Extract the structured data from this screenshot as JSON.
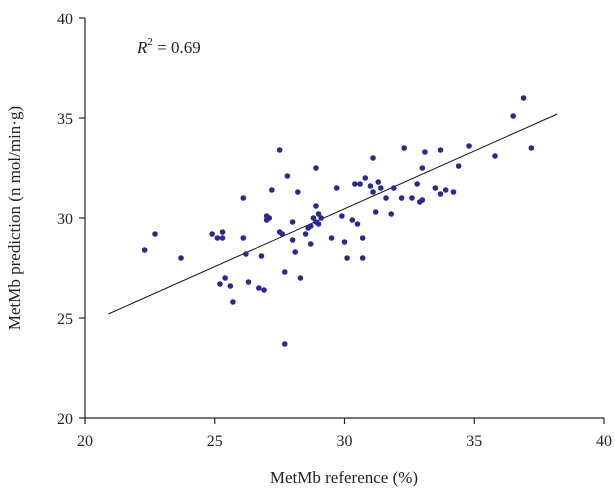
{
  "chart_data": {
    "type": "scatter",
    "xlabel": "MetMb reference (%)",
    "ylabel": "MetMb prediction (n mol/min·g)",
    "xlim": [
      20,
      40
    ],
    "ylim": [
      20,
      40
    ],
    "xticks": [
      20,
      25,
      30,
      35,
      40
    ],
    "yticks": [
      20,
      25,
      30,
      35,
      40
    ],
    "annotation": {
      "base": "R",
      "sup": "2",
      "rest": " = 0.69"
    },
    "colors": {
      "points": "#2a2a8c",
      "line": "#111111",
      "axis": "#222222"
    },
    "fit_line": {
      "x": [
        20.9,
        38.2
      ],
      "y": [
        25.2,
        35.2
      ]
    },
    "points": [
      {
        "x": 22.3,
        "y": 28.4
      },
      {
        "x": 22.7,
        "y": 29.2
      },
      {
        "x": 23.7,
        "y": 28.0
      },
      {
        "x": 24.9,
        "y": 29.2
      },
      {
        "x": 25.1,
        "y": 29.0
      },
      {
        "x": 25.3,
        "y": 29.3
      },
      {
        "x": 25.3,
        "y": 29.0
      },
      {
        "x": 25.2,
        "y": 26.7
      },
      {
        "x": 25.4,
        "y": 27.0
      },
      {
        "x": 25.6,
        "y": 26.6
      },
      {
        "x": 25.7,
        "y": 25.8
      },
      {
        "x": 26.1,
        "y": 31.0
      },
      {
        "x": 26.1,
        "y": 29.0
      },
      {
        "x": 26.2,
        "y": 28.2
      },
      {
        "x": 26.3,
        "y": 26.8
      },
      {
        "x": 26.7,
        "y": 26.5
      },
      {
        "x": 26.8,
        "y": 28.1
      },
      {
        "x": 26.9,
        "y": 26.4
      },
      {
        "x": 27.0,
        "y": 30.1
      },
      {
        "x": 27.0,
        "y": 29.9
      },
      {
        "x": 27.1,
        "y": 30.0
      },
      {
        "x": 27.2,
        "y": 31.4
      },
      {
        "x": 27.5,
        "y": 33.4
      },
      {
        "x": 27.5,
        "y": 29.3
      },
      {
        "x": 27.6,
        "y": 29.2
      },
      {
        "x": 27.7,
        "y": 27.3
      },
      {
        "x": 27.8,
        "y": 32.1
      },
      {
        "x": 27.7,
        "y": 23.7
      },
      {
        "x": 28.0,
        "y": 28.9
      },
      {
        "x": 28.0,
        "y": 29.8
      },
      {
        "x": 28.2,
        "y": 31.3
      },
      {
        "x": 28.1,
        "y": 28.3
      },
      {
        "x": 28.3,
        "y": 27.0
      },
      {
        "x": 28.5,
        "y": 29.2
      },
      {
        "x": 28.6,
        "y": 29.5
      },
      {
        "x": 28.7,
        "y": 28.7
      },
      {
        "x": 28.7,
        "y": 29.6
      },
      {
        "x": 28.8,
        "y": 30.0
      },
      {
        "x": 28.9,
        "y": 29.8
      },
      {
        "x": 28.9,
        "y": 30.6
      },
      {
        "x": 28.9,
        "y": 32.5
      },
      {
        "x": 29.0,
        "y": 30.2
      },
      {
        "x": 29.0,
        "y": 29.7
      },
      {
        "x": 29.1,
        "y": 30.0
      },
      {
        "x": 29.5,
        "y": 29.0
      },
      {
        "x": 29.7,
        "y": 31.5
      },
      {
        "x": 29.9,
        "y": 30.1
      },
      {
        "x": 30.0,
        "y": 28.8
      },
      {
        "x": 30.1,
        "y": 28.0
      },
      {
        "x": 30.3,
        "y": 29.9
      },
      {
        "x": 30.4,
        "y": 31.7
      },
      {
        "x": 30.5,
        "y": 29.7
      },
      {
        "x": 30.6,
        "y": 31.7
      },
      {
        "x": 30.7,
        "y": 29.0
      },
      {
        "x": 30.7,
        "y": 28.0
      },
      {
        "x": 30.8,
        "y": 32.0
      },
      {
        "x": 31.0,
        "y": 31.6
      },
      {
        "x": 31.1,
        "y": 33.0
      },
      {
        "x": 31.1,
        "y": 31.3
      },
      {
        "x": 31.2,
        "y": 30.3
      },
      {
        "x": 31.3,
        "y": 31.8
      },
      {
        "x": 31.4,
        "y": 31.5
      },
      {
        "x": 31.6,
        "y": 31.0
      },
      {
        "x": 31.8,
        "y": 30.2
      },
      {
        "x": 31.9,
        "y": 31.5
      },
      {
        "x": 32.2,
        "y": 31.0
      },
      {
        "x": 32.3,
        "y": 33.5
      },
      {
        "x": 32.6,
        "y": 31.0
      },
      {
        "x": 32.8,
        "y": 31.7
      },
      {
        "x": 32.9,
        "y": 30.8
      },
      {
        "x": 33.0,
        "y": 32.5
      },
      {
        "x": 33.0,
        "y": 30.9
      },
      {
        "x": 33.1,
        "y": 33.3
      },
      {
        "x": 33.5,
        "y": 31.5
      },
      {
        "x": 33.7,
        "y": 33.4
      },
      {
        "x": 33.7,
        "y": 31.2
      },
      {
        "x": 33.9,
        "y": 31.4
      },
      {
        "x": 34.2,
        "y": 31.3
      },
      {
        "x": 34.4,
        "y": 32.6
      },
      {
        "x": 34.8,
        "y": 33.6
      },
      {
        "x": 35.8,
        "y": 33.1
      },
      {
        "x": 36.5,
        "y": 35.1
      },
      {
        "x": 36.9,
        "y": 36.0
      },
      {
        "x": 37.2,
        "y": 33.5
      }
    ]
  }
}
